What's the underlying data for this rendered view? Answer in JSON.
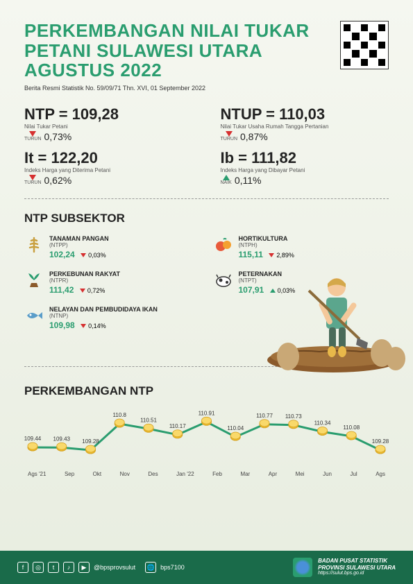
{
  "header": {
    "title": "PERKEMBANGAN NILAI TUKAR PETANI SULAWESI UTARA AGUSTUS 2022",
    "subtitle": "Berita Resmi Statistik No. 59/09/71 Thn. XVI, 01 September 2022"
  },
  "stats": [
    {
      "main": "NTP = 109,28",
      "desc": "Nilai Tukar Petani",
      "dir": "down",
      "dir_label": "TURUN",
      "change": "0,73%"
    },
    {
      "main": "NTUP = 110,03",
      "desc": "Nilai Tukar Usaha Rumah Tangga Pertanian",
      "dir": "down",
      "dir_label": "TURUN",
      "change": "0,87%"
    },
    {
      "main": "It = 122,20",
      "desc": "Indeks Harga yang Diterima Petani",
      "dir": "down",
      "dir_label": "TURUN",
      "change": "0,62%"
    },
    {
      "main": "Ib = 111,82",
      "desc": "Indeks Harga yang Dibayar Petani",
      "dir": "up",
      "dir_label": "NAIK",
      "change": "0,11%"
    }
  ],
  "subsector": {
    "title": "NTP SUBSEKTOR",
    "items": [
      {
        "name": "TANAMAN PANGAN",
        "code": "(NTPP)",
        "value": "102,24",
        "dir": "down",
        "change": "0,03%",
        "icon": "wheat"
      },
      {
        "name": "HORTIKULTURA",
        "code": "(NTPH)",
        "value": "115,11",
        "dir": "down",
        "change": "2,89%",
        "icon": "fruit"
      },
      {
        "name": "PERKEBUNAN RAKYAT",
        "code": "(NTPR)",
        "value": "111,42",
        "dir": "down",
        "change": "0,72%",
        "icon": "plant"
      },
      {
        "name": "PETERNAKAN",
        "code": "(NTPT)",
        "value": "107,91",
        "dir": "up",
        "change": "0,03%",
        "icon": "cow"
      },
      {
        "name": "NELAYAN DAN PEMBUDIDAYA IKAN",
        "code": "(NTNP)",
        "value": "109,98",
        "dir": "down",
        "change": "0,14%",
        "icon": "fish"
      }
    ]
  },
  "chart": {
    "title": "PERKEMBANGAN NTP",
    "labels": [
      "Ags '21",
      "Sep",
      "Okt",
      "Nov",
      "Des",
      "Jan '22",
      "Feb",
      "Mar",
      "Apr",
      "Mei",
      "Jun",
      "Jul",
      "Ags"
    ],
    "values": [
      109.44,
      109.43,
      109.28,
      110.8,
      110.51,
      110.17,
      110.91,
      110.04,
      110.77,
      110.73,
      110.34,
      110.08,
      109.28
    ],
    "value_labels": [
      "109.44",
      "109.43",
      "109.28",
      "110.8",
      "110.51",
      "110.17",
      "110.91",
      "110.04",
      "110.77",
      "110.73",
      "110.34",
      "110.08",
      "109.28"
    ],
    "ymin": 109.0,
    "ymax": 111.2,
    "line_color": "#2a9d6f",
    "marker_color": "#f4c430"
  },
  "footer": {
    "handle1": "@bpsprovsulut",
    "handle2": "bps7100",
    "org_line1": "BADAN PUSAT STATISTIK",
    "org_line2": "PROVINSI SULAWESI UTARA",
    "url": "https://sulut.bps.go.id"
  },
  "colors": {
    "primary": "#2a9d6f",
    "down": "#d63030",
    "footer_bg": "#1a6b4a"
  }
}
